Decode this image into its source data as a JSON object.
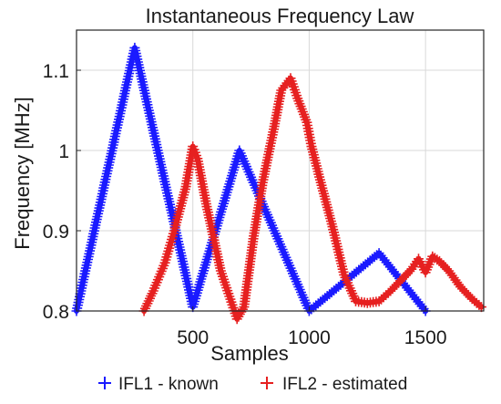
{
  "chart_data": {
    "type": "line",
    "title": "Instantaneous Frequency Law",
    "xlabel": "Samples",
    "ylabel": "Frequency [MHz]",
    "xlim": [
      0,
      1750
    ],
    "ylim": [
      0.8,
      1.15
    ],
    "xticks": [
      500,
      1000,
      1500
    ],
    "xtick_labels": [
      "500",
      "1000",
      "1500"
    ],
    "yticks": [
      0.8,
      0.9,
      1.0,
      1.1
    ],
    "ytick_labels": [
      "0.8",
      "0.9",
      "1",
      "1.1"
    ],
    "grid": true,
    "legend_position": "bottom",
    "series": [
      {
        "name": "IFL1 - known",
        "color": "#1a1aff",
        "marker": "+",
        "x": [
          0,
          250,
          500,
          700,
          1000,
          1300,
          1500
        ],
        "y": [
          0.8,
          1.128,
          0.805,
          1.0,
          0.8,
          0.872,
          0.8
        ]
      },
      {
        "name": "IFL2 - estimated",
        "color": "#e62020",
        "marker": "+",
        "x": [
          290,
          330,
          380,
          420,
          470,
          500,
          520,
          560,
          620,
          690,
          720,
          760,
          800,
          850,
          880,
          920,
          950,
          990,
          1010,
          1050,
          1100,
          1150,
          1200,
          1250,
          1300,
          1350,
          1400,
          1440,
          1470,
          1500,
          1530,
          1560,
          1600,
          1650,
          1700,
          1740
        ],
        "y": [
          0.8,
          0.825,
          0.86,
          0.9,
          0.955,
          1.005,
          0.99,
          0.93,
          0.85,
          0.79,
          0.805,
          0.89,
          0.96,
          1.03,
          1.075,
          1.09,
          1.065,
          1.035,
          1.005,
          0.96,
          0.905,
          0.845,
          0.812,
          0.81,
          0.812,
          0.825,
          0.84,
          0.852,
          0.865,
          0.848,
          0.868,
          0.862,
          0.85,
          0.83,
          0.815,
          0.805
        ]
      }
    ]
  }
}
